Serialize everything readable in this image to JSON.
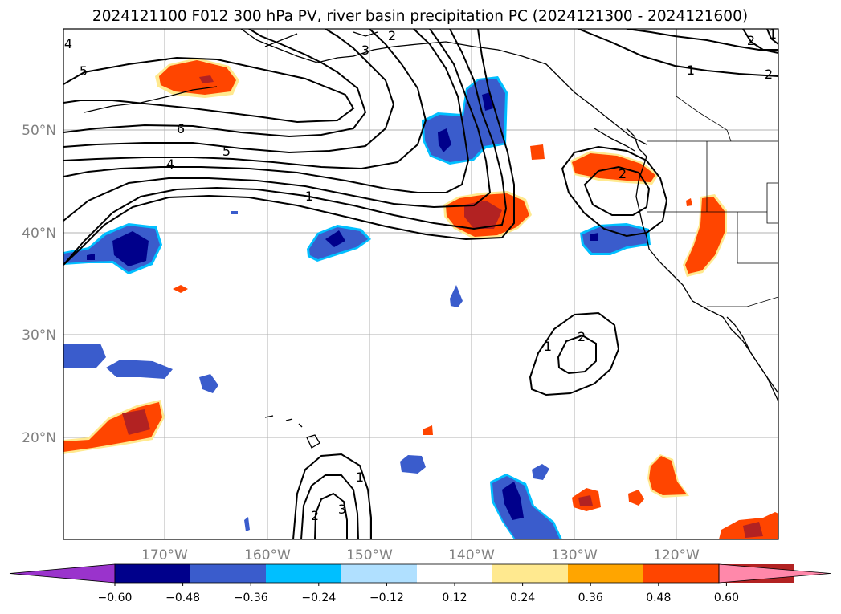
{
  "title": "2024121100 F012 300 hPa PV, river basin precipitation PC (2024121300 - 2024121600)",
  "map": {
    "lat_labels": [
      "50°N",
      "40°N",
      "30°N",
      "20°N"
    ],
    "lon_labels": [
      "170°W",
      "160°W",
      "150°W",
      "140°W",
      "130°W",
      "120°W"
    ],
    "grid": true
  },
  "colorbar": {
    "labels": [
      "−0.60",
      "−0.48",
      "−0.36",
      "−0.24",
      "−0.12",
      "0.12",
      "0.24",
      "0.36",
      "0.48",
      "0.60"
    ],
    "colors": [
      "#9a33cc",
      "#00008b",
      "#3a5ccc",
      "#00bfff",
      "#b0e0ff",
      "#ffffff",
      "#ffe98f",
      "#ffa500",
      "#ff4500",
      "#b22222",
      "#ff88aa"
    ],
    "extend": "both"
  },
  "pv_contour_labels": [
    "5",
    "6",
    "5",
    "4",
    "3",
    "2",
    "1",
    "2",
    "1",
    "2",
    "2",
    "1",
    "2",
    "1",
    "1",
    "2",
    "3",
    "4"
  ],
  "chart_data": {
    "type": "map",
    "fields": [
      "300 hPa PV (contours)",
      "river basin precipitation PC (shaded)"
    ]
  }
}
